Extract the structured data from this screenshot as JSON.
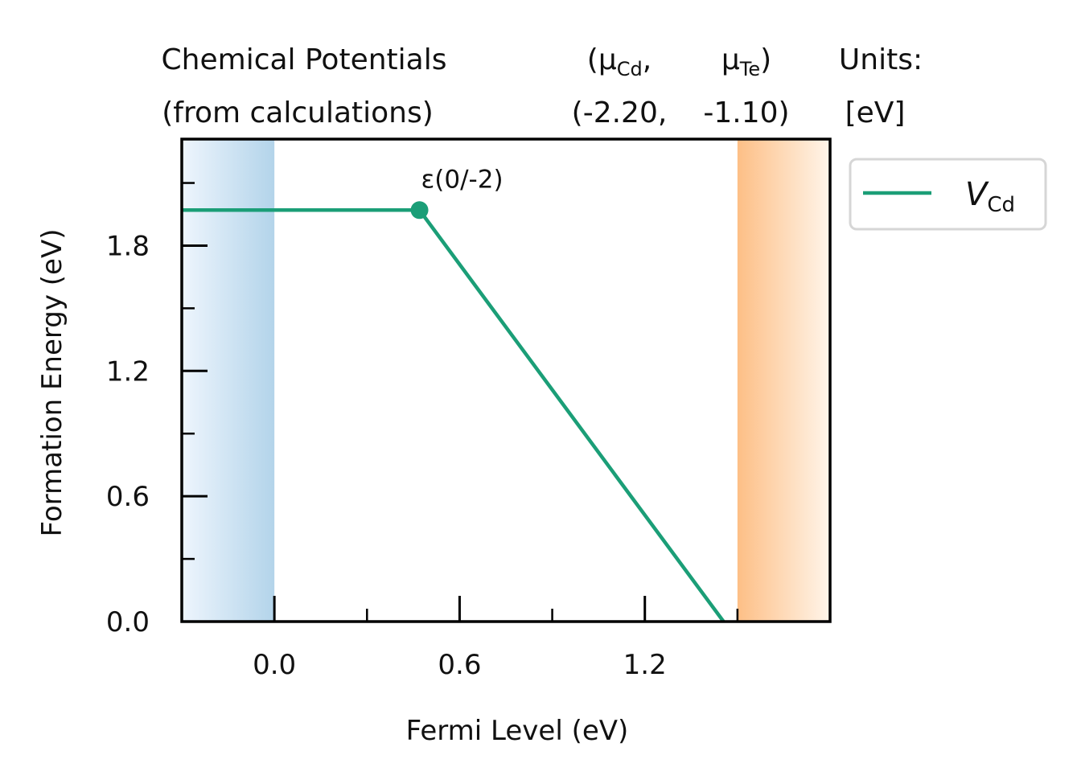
{
  "chart_data": {
    "type": "line",
    "header": {
      "left": [
        "Chemical Potentials",
        "(from calculations)"
      ],
      "mu_labels": [
        {
          "pre": "(μ",
          "sub": "Cd",
          "post": ","
        },
        {
          "pre": "μ",
          "sub": "Te",
          "post": ")"
        }
      ],
      "mu_values": [
        "(-2.20,",
        "-1.10)"
      ],
      "units": [
        "Units:",
        "[eV]"
      ]
    },
    "x_label": "Fermi Level (eV)",
    "y_label": "Formation Energy (eV)",
    "xlim": [
      -0.3,
      1.8
    ],
    "ylim": [
      0,
      2.31
    ],
    "xticks": [
      {
        "value": 0,
        "label": "0.0"
      },
      0.6,
      1.2
    ],
    "xminor": [
      0.3,
      0.9,
      1.5
    ],
    "yticks": [
      {
        "value": 0,
        "label": "0.0"
      },
      0.6,
      1.2,
      1.8
    ],
    "yminor": [
      0.3,
      0.9,
      1.5,
      2.1
    ],
    "bands": [
      {
        "from": -0.3,
        "to": 0,
        "color": "#b3d4ea",
        "fade": "left"
      },
      {
        "from": 1.5,
        "to": 1.8,
        "color": "#fdbf86",
        "fade": "right"
      }
    ],
    "series": [
      {
        "name": "V",
        "name_sub": "Cd",
        "color": "#1b9e77",
        "x": [
          -0.3,
          0.47,
          1.455
        ],
        "values": [
          1.97,
          1.97,
          0
        ]
      }
    ],
    "transition": {
      "index": 1,
      "label": "ε(0/-2)"
    },
    "legend": "outside-upper-right"
  }
}
